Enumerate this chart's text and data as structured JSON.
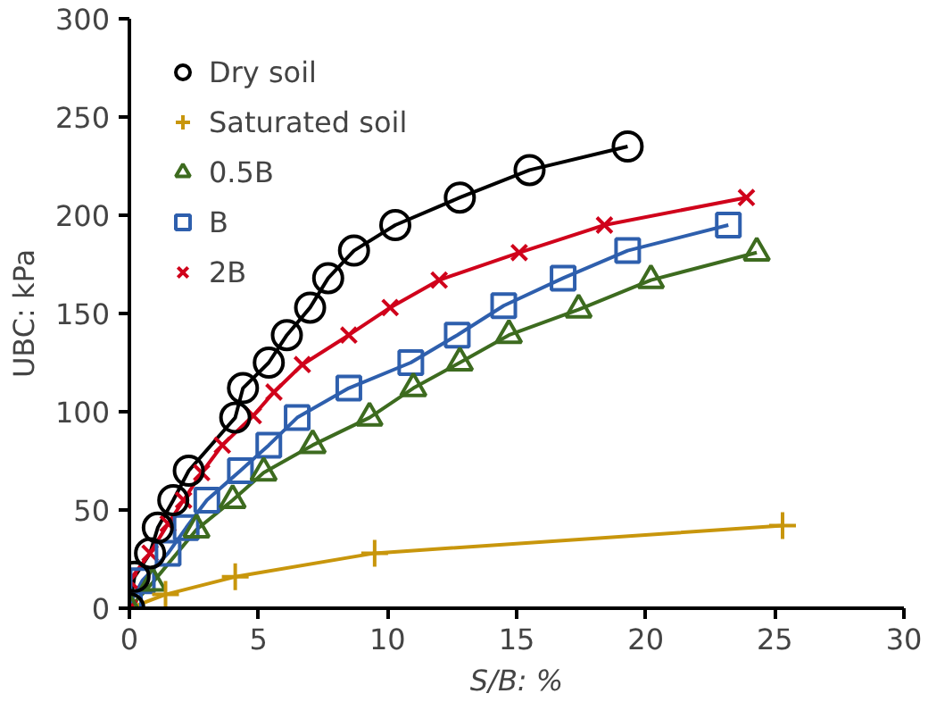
{
  "chart_data": {
    "type": "line",
    "xlabel": "S/B: %",
    "ylabel": "UBC: kPa",
    "xlim": [
      0,
      30
    ],
    "xticks": [
      0,
      5,
      10,
      15,
      20,
      25,
      30
    ],
    "ylim": [
      0,
      300
    ],
    "yticks": [
      0,
      50,
      100,
      150,
      200,
      250,
      300
    ],
    "grid": false,
    "legend": "top left",
    "series": [
      {
        "name": "Dry soil",
        "color": "#000000",
        "marker": "circle",
        "x": [
          0,
          0.2,
          0.8,
          1.1,
          1.7,
          2.3,
          4.1,
          4.4,
          5.4,
          6.1,
          7.0,
          7.7,
          8.7,
          10.3,
          12.8,
          15.5,
          19.3
        ],
        "values": [
          0,
          16,
          28,
          41,
          55,
          70,
          97,
          112,
          125,
          139,
          153,
          168,
          182,
          195,
          209,
          223,
          235
        ]
      },
      {
        "name": "Saturated soil",
        "color": "#c8960c",
        "marker": "cross",
        "x": [
          0,
          1.4,
          4.1,
          9.5,
          25.3
        ],
        "values": [
          0,
          7,
          16,
          28,
          42
        ]
      },
      {
        "name": "0.5B",
        "color": "#3d6b1f",
        "marker": "triangle",
        "x": [
          0,
          0.9,
          2.6,
          4.0,
          5.2,
          7.1,
          9.3,
          11.0,
          12.8,
          14.7,
          17.4,
          20.2,
          24.3
        ],
        "values": [
          0,
          13,
          40,
          55,
          69,
          83,
          97,
          112,
          125,
          139,
          152,
          167,
          181
        ]
      },
      {
        "name": "B",
        "color": "#2e5fad",
        "marker": "square",
        "x": [
          0,
          0.5,
          1.5,
          2.2,
          3.0,
          4.3,
          5.4,
          6.5,
          8.5,
          10.9,
          12.7,
          14.5,
          16.8,
          19.3,
          23.2
        ],
        "values": [
          2,
          14,
          28,
          41,
          55,
          70,
          83,
          97,
          112,
          125,
          139,
          154,
          168,
          182,
          195
        ]
      },
      {
        "name": "2B",
        "color": "#d0021b",
        "marker": "x",
        "x": [
          0,
          0,
          0.8,
          1.5,
          2.1,
          2.8,
          3.6,
          4.8,
          5.6,
          6.7,
          8.5,
          10.1,
          12.0,
          15.1,
          18.4,
          23.9
        ],
        "values": [
          0,
          14,
          28,
          43,
          55,
          69,
          83,
          98,
          110,
          124,
          139,
          153,
          167,
          181,
          195,
          209
        ]
      }
    ]
  }
}
